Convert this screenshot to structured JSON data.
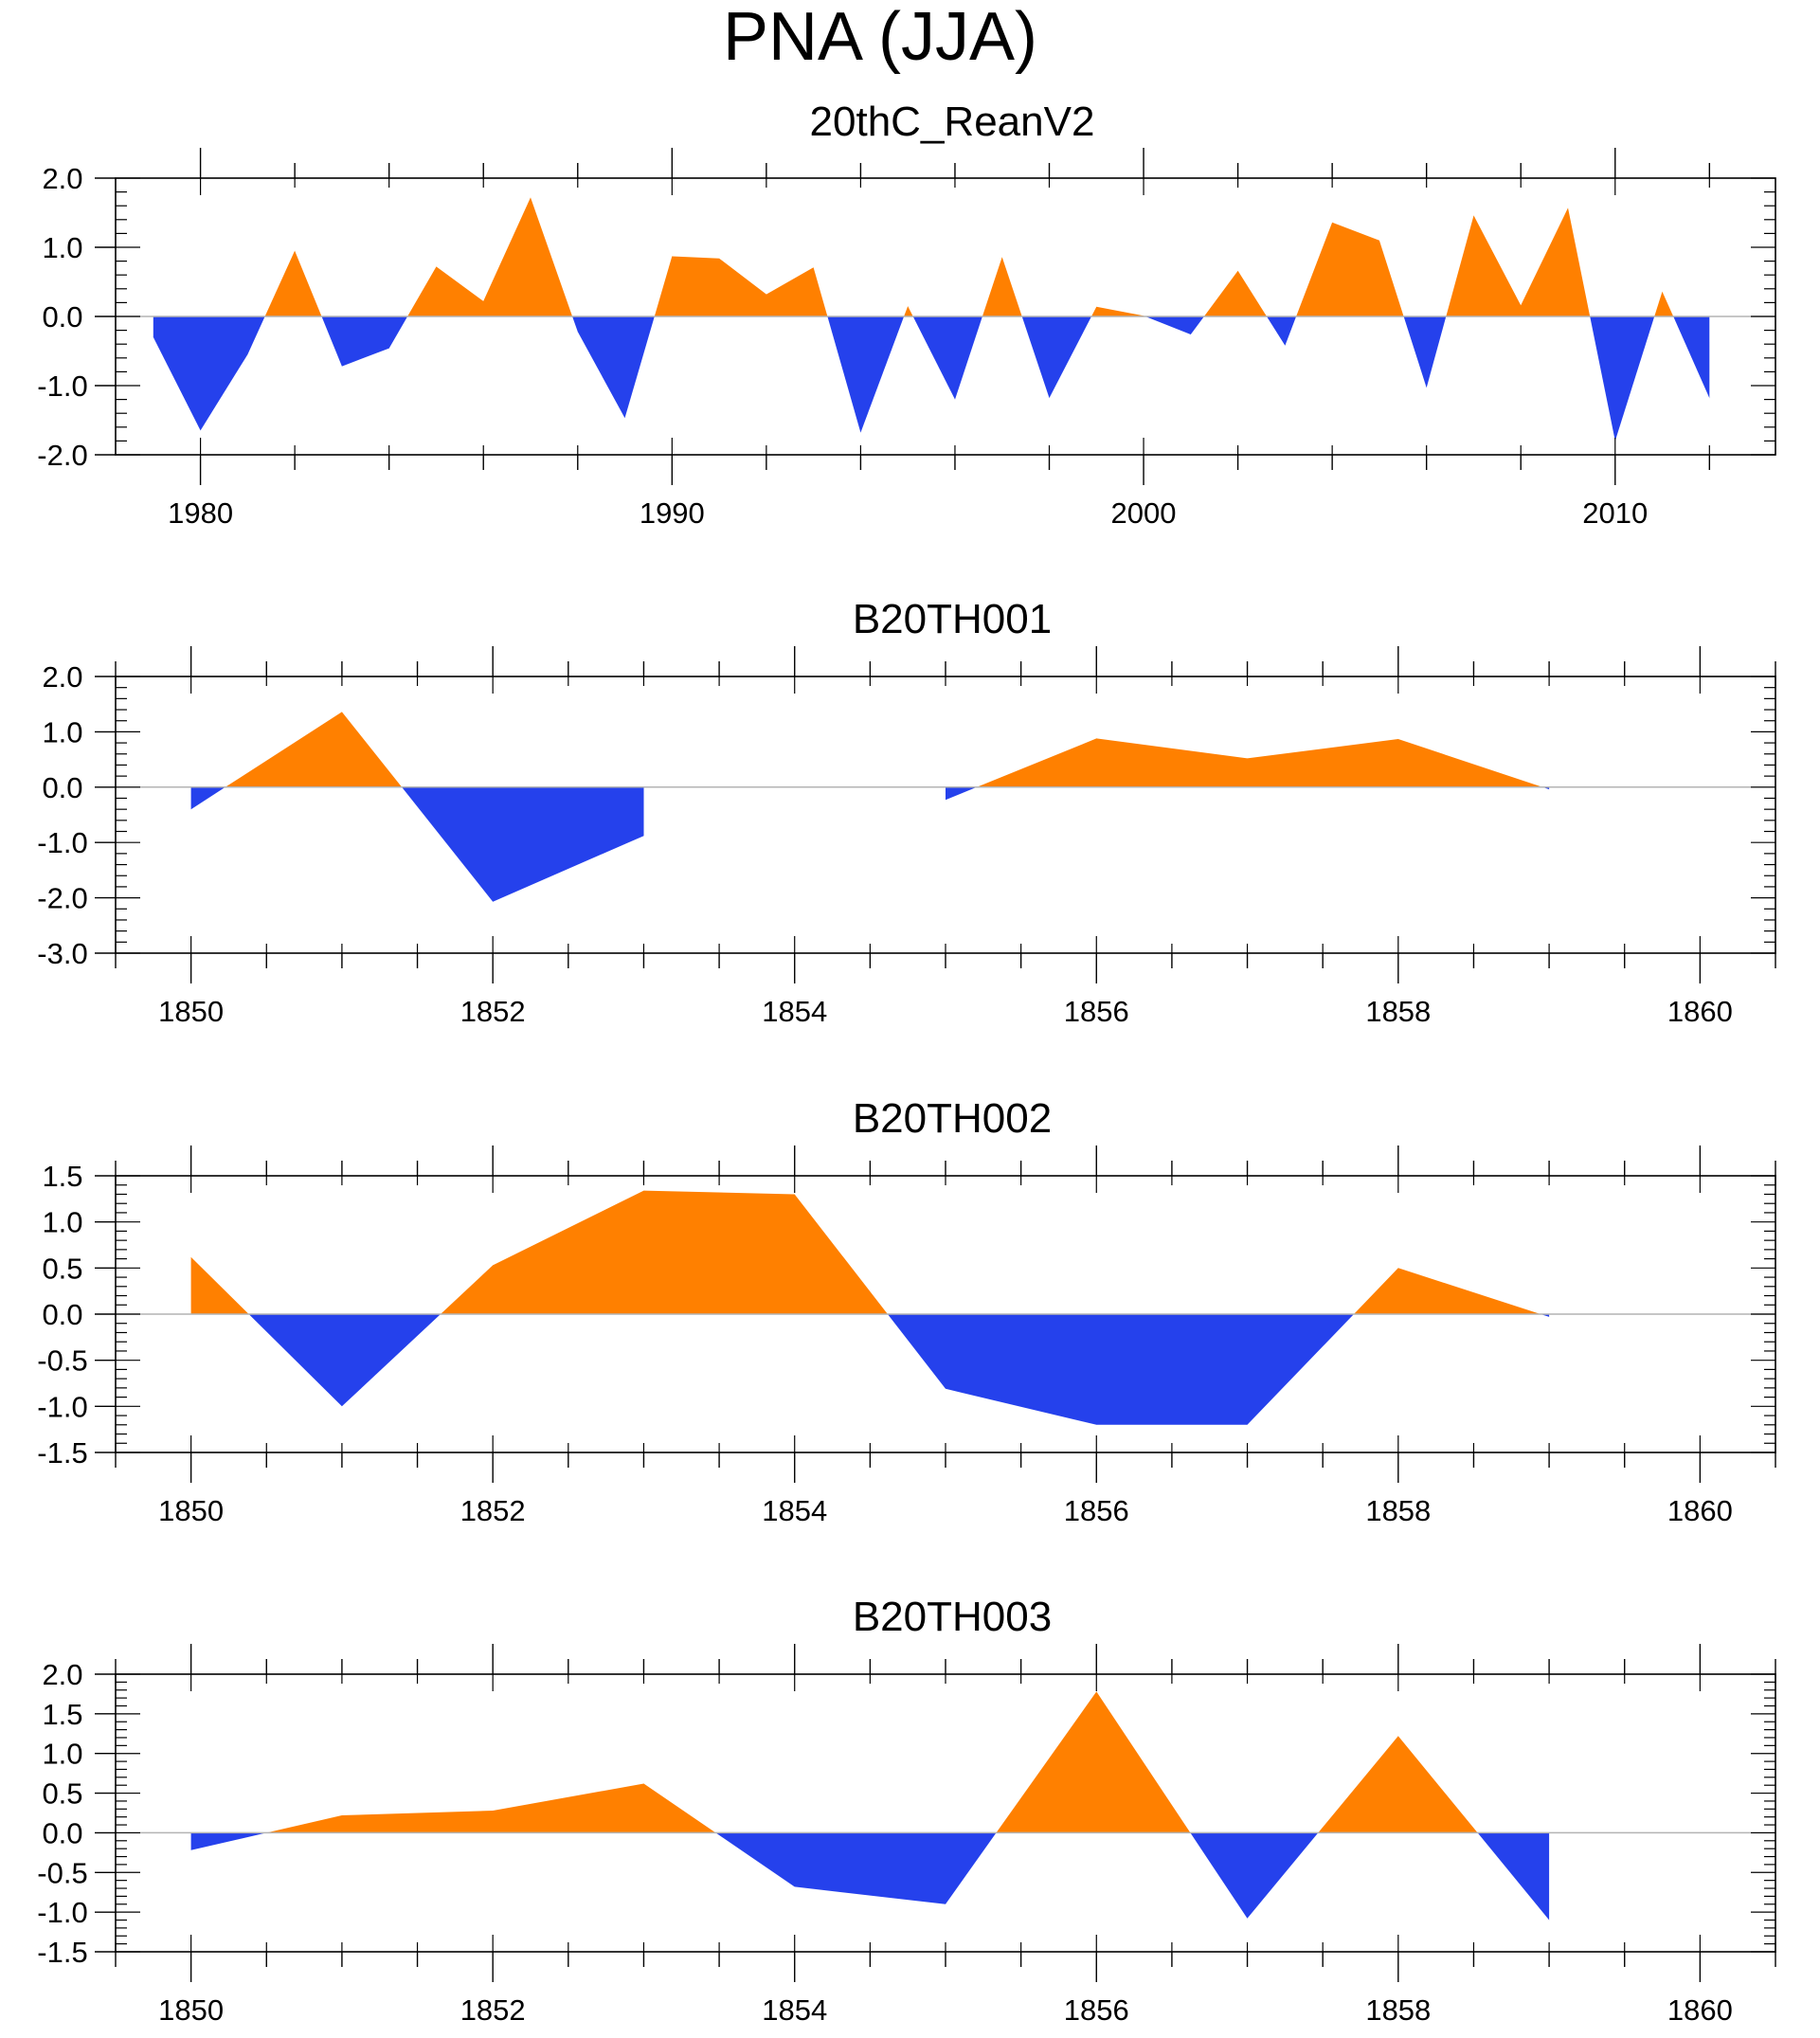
{
  "title": "PNA (JJA)",
  "colors": {
    "positive": "#ff8000",
    "negative": "#2541ec",
    "zero_line": "#b4b4b4",
    "axis": "#000000"
  },
  "chart_data": [
    {
      "type": "area",
      "title": "20thC_ReanV2",
      "xlabel": "",
      "ylabel": "",
      "xlim": [
        1978.2,
        2013.4
      ],
      "ylim": [
        -2.0,
        2.0
      ],
      "x_major_ticks": [
        1980,
        1990,
        2000,
        2010
      ],
      "x_minor_step": 2,
      "y_major_ticks": [
        -2.0,
        -1.0,
        0.0,
        1.0,
        2.0
      ],
      "y_minor_step": 0.2,
      "y_tick_labels": [
        "-2.0",
        "-1.0",
        "0.0",
        "1.0",
        "2.0"
      ],
      "x_tick_labels": [
        "1980",
        "1990",
        "2000",
        "2010"
      ],
      "x": [
        1979,
        1980,
        1981,
        1982,
        1983,
        1984,
        1985,
        1986,
        1987,
        1988,
        1989,
        1990,
        1991,
        1992,
        1993,
        1994,
        1995,
        1996,
        1997,
        1998,
        1999,
        2000,
        2001,
        2002,
        2003,
        2004,
        2005,
        2006,
        2007,
        2008,
        2009,
        2010,
        2011,
        2012
      ],
      "values": [
        -0.3,
        -1.65,
        -0.55,
        0.95,
        -0.72,
        -0.46,
        0.72,
        0.22,
        1.72,
        -0.22,
        -1.47,
        0.87,
        0.84,
        0.32,
        0.71,
        -1.68,
        0.15,
        -1.2,
        0.86,
        -1.18,
        0.14,
        0.01,
        -0.26,
        0.66,
        -0.42,
        1.36,
        1.1,
        -1.03,
        1.46,
        0.16,
        1.57,
        -1.8,
        0.36,
        -1.18
      ]
    },
    {
      "type": "area",
      "title": "B20TH001",
      "xlabel": "",
      "ylabel": "",
      "xlim": [
        1849.5,
        1860.5
      ],
      "ylim": [
        -3.0,
        2.0
      ],
      "x_major_ticks": [
        1850,
        1852,
        1854,
        1856,
        1858,
        1860
      ],
      "x_minor_step": 0.5,
      "y_major_ticks": [
        -3.0,
        -2.0,
        -1.0,
        0.0,
        1.0,
        2.0
      ],
      "y_minor_step": 0.2,
      "y_tick_labels": [
        "-3.0",
        "-2.0",
        "-1.0",
        "0.0",
        "1.0",
        "2.0"
      ],
      "x_tick_labels": [
        "1850",
        "1852",
        "1854",
        "1856",
        "1858",
        "1860"
      ],
      "x": [
        1850,
        1851,
        1852,
        1853,
        1854,
        1855,
        1856,
        1857,
        1858,
        1859
      ],
      "values": [
        -0.4,
        1.36,
        -2.07,
        -0.88,
        0.0,
        -0.23,
        0.88,
        0.52,
        0.87,
        -0.04
      ]
    },
    {
      "type": "area",
      "title": "B20TH002",
      "xlabel": "",
      "ylabel": "",
      "xlim": [
        1849.5,
        1860.5
      ],
      "ylim": [
        -1.5,
        1.5
      ],
      "x_major_ticks": [
        1850,
        1852,
        1854,
        1856,
        1858,
        1860
      ],
      "x_minor_step": 0.5,
      "y_major_ticks": [
        -1.5,
        -1.0,
        -0.5,
        0.0,
        0.5,
        1.0,
        1.5
      ],
      "y_minor_step": 0.1,
      "y_tick_labels": [
        "-1.5",
        "-1.0",
        "-0.5",
        "0.0",
        "0.5",
        "1.0",
        "1.5"
      ],
      "x_tick_labels": [
        "1850",
        "1852",
        "1854",
        "1856",
        "1858",
        "1860"
      ],
      "x": [
        1850,
        1851,
        1852,
        1853,
        1854,
        1855,
        1856,
        1857,
        1858,
        1859
      ],
      "values": [
        0.62,
        -1.0,
        0.53,
        1.34,
        1.3,
        -0.81,
        -1.2,
        -1.2,
        0.5,
        -0.03
      ]
    },
    {
      "type": "area",
      "title": "B20TH003",
      "xlabel": "",
      "ylabel": "",
      "xlim": [
        1849.5,
        1860.5
      ],
      "ylim": [
        -1.5,
        2.0
      ],
      "x_major_ticks": [
        1850,
        1852,
        1854,
        1856,
        1858,
        1860
      ],
      "x_minor_step": 0.5,
      "y_major_ticks": [
        -1.5,
        -1.0,
        -0.5,
        0.0,
        0.5,
        1.0,
        1.5,
        2.0
      ],
      "y_minor_step": 0.1,
      "y_tick_labels": [
        "-1.5",
        "-1.0",
        "-0.5",
        "0.0",
        "0.5",
        "1.0",
        "1.5",
        "2.0"
      ],
      "x_tick_labels": [
        "1850",
        "1852",
        "1854",
        "1856",
        "1858",
        "1860"
      ],
      "x": [
        1850,
        1851,
        1852,
        1853,
        1854,
        1855,
        1856,
        1857,
        1858,
        1859
      ],
      "values": [
        -0.22,
        0.22,
        0.28,
        0.62,
        -0.68,
        -0.9,
        1.78,
        -1.08,
        1.22,
        -1.1
      ]
    }
  ]
}
